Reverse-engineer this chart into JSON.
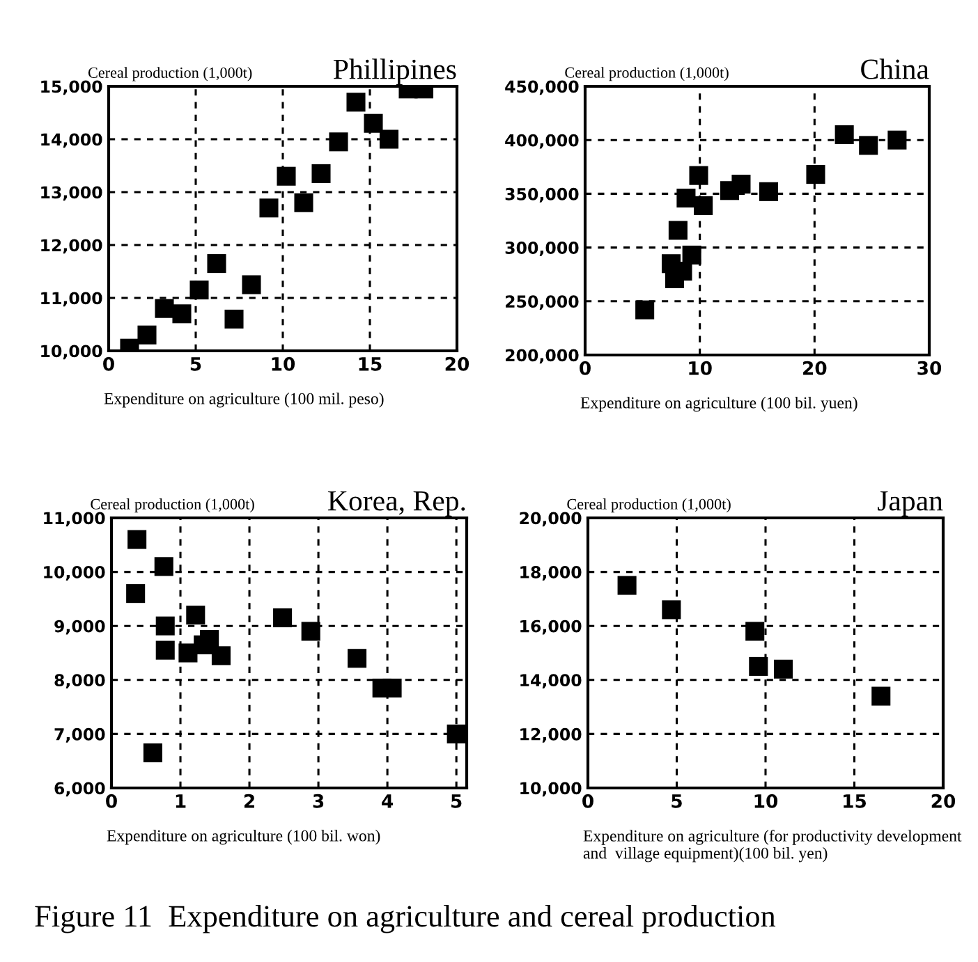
{
  "chart_data": [
    {
      "type": "scatter",
      "title": "Phillipines",
      "ylabel": "Cereal production (1,000t)",
      "xlabel": "Expenditure on agriculture (100 mil. peso)",
      "xlim": [
        0,
        20
      ],
      "ylim": [
        10000,
        15000
      ],
      "xticks": [
        0,
        5,
        10,
        15,
        20
      ],
      "yticks": [
        {
          "value": 10000,
          "label": "10,000"
        },
        {
          "value": 11000,
          "label": "11,000"
        },
        {
          "value": 12000,
          "label": "12,000"
        },
        {
          "value": 13000,
          "label": "13,000"
        },
        {
          "value": 14000,
          "label": "14,000"
        },
        {
          "value": 15000,
          "label": "15,000"
        }
      ],
      "grid": true,
      "marker": "square",
      "series": [
        {
          "color": "#000000",
          "x": [
            1.2,
            2.2,
            3.2,
            4.2,
            5.2,
            6.2,
            7.2,
            8.2,
            9.2,
            10.2,
            11.2,
            12.2,
            13.2,
            14.2,
            15.2,
            16.1,
            17.2,
            18.1
          ],
          "values": [
            10050,
            10300,
            10800,
            10700,
            11150,
            11650,
            10600,
            11250,
            12700,
            13300,
            12800,
            13350,
            13950,
            14700,
            14300,
            14000,
            14950,
            14950
          ]
        }
      ]
    },
    {
      "type": "scatter",
      "title": "China",
      "ylabel": "Cereal production (1,000t)",
      "xlabel": "Expenditure on agriculture (100 bil. yuen)",
      "xlim": [
        0,
        30
      ],
      "ylim": [
        200000,
        450000
      ],
      "xticks": [
        0,
        10,
        20,
        30
      ],
      "yticks": [
        {
          "value": 200000,
          "label": "200,000"
        },
        {
          "value": 250000,
          "label": "250,000"
        },
        {
          "value": 300000,
          "label": "300,000"
        },
        {
          "value": 350000,
          "label": "350,000"
        },
        {
          "value": 400000,
          "label": "400,000"
        },
        {
          "value": 450000,
          "label": "450,000"
        }
      ],
      "grid": true,
      "marker": "square",
      "series": [
        {
          "color": "#000000",
          "x": [
            5.2,
            7.5,
            7.8,
            8.1,
            8.5,
            8.8,
            9.3,
            9.9,
            10.3,
            12.6,
            13.6,
            16.0,
            20.1,
            22.6,
            24.7,
            27.2
          ],
          "values": [
            242000,
            285000,
            271000,
            316000,
            278000,
            346000,
            293000,
            367000,
            339000,
            353000,
            359000,
            352000,
            368000,
            405000,
            395000,
            400000
          ]
        }
      ]
    },
    {
      "type": "scatter",
      "title": "Korea, Rep.",
      "ylabel": "Cereal production (1,000t)",
      "xlabel": "Expenditure on agriculture (100 bil. won)",
      "xlim": [
        0,
        5.15
      ],
      "ylim": [
        6000,
        11000
      ],
      "xticks": [
        0,
        1,
        2,
        3,
        4,
        5
      ],
      "yticks": [
        {
          "value": 6000,
          "label": "6,000"
        },
        {
          "value": 7000,
          "label": "7,000"
        },
        {
          "value": 8000,
          "label": "8,000"
        },
        {
          "value": 9000,
          "label": "9,000"
        },
        {
          "value": 10000,
          "label": "10,000"
        },
        {
          "value": 11000,
          "label": "11,000"
        }
      ],
      "grid": true,
      "marker": "square",
      "series": [
        {
          "color": "#000000",
          "x": [
            0.37,
            0.76,
            0.35,
            0.78,
            0.78,
            1.11,
            1.22,
            1.33,
            1.42,
            1.59,
            2.48,
            2.89,
            3.56,
            3.92,
            4.07,
            5.0,
            0.6
          ],
          "values": [
            10600,
            10100,
            9600,
            9000,
            8550,
            8500,
            9200,
            8650,
            8750,
            8450,
            9150,
            8900,
            8400,
            7850,
            7850,
            7000,
            6650
          ]
        }
      ]
    },
    {
      "type": "scatter",
      "title": "Japan",
      "ylabel": "Cereal production (1,000t)",
      "xlabel": "Expenditure on agriculture (for productivity development and  village equipment)(100 bil. yen)",
      "xlim": [
        0,
        20
      ],
      "ylim": [
        10000,
        20000
      ],
      "xticks": [
        0,
        5,
        10,
        15,
        20
      ],
      "yticks": [
        {
          "value": 10000,
          "label": "10,000"
        },
        {
          "value": 12000,
          "label": "12,000"
        },
        {
          "value": 14000,
          "label": "14,000"
        },
        {
          "value": 16000,
          "label": "16,000"
        },
        {
          "value": 18000,
          "label": "18,000"
        },
        {
          "value": 20000,
          "label": "20,000"
        }
      ],
      "grid": true,
      "marker": "square",
      "annotations": [
        "Figure 11  Expenditure on agriculture and cereal production"
      ],
      "series": [
        {
          "color": "#000000",
          "x": [
            2.2,
            4.7,
            9.4,
            9.6,
            11.0,
            16.5
          ],
          "values": [
            17500,
            16600,
            15800,
            14500,
            14400,
            13400
          ]
        }
      ]
    }
  ]
}
